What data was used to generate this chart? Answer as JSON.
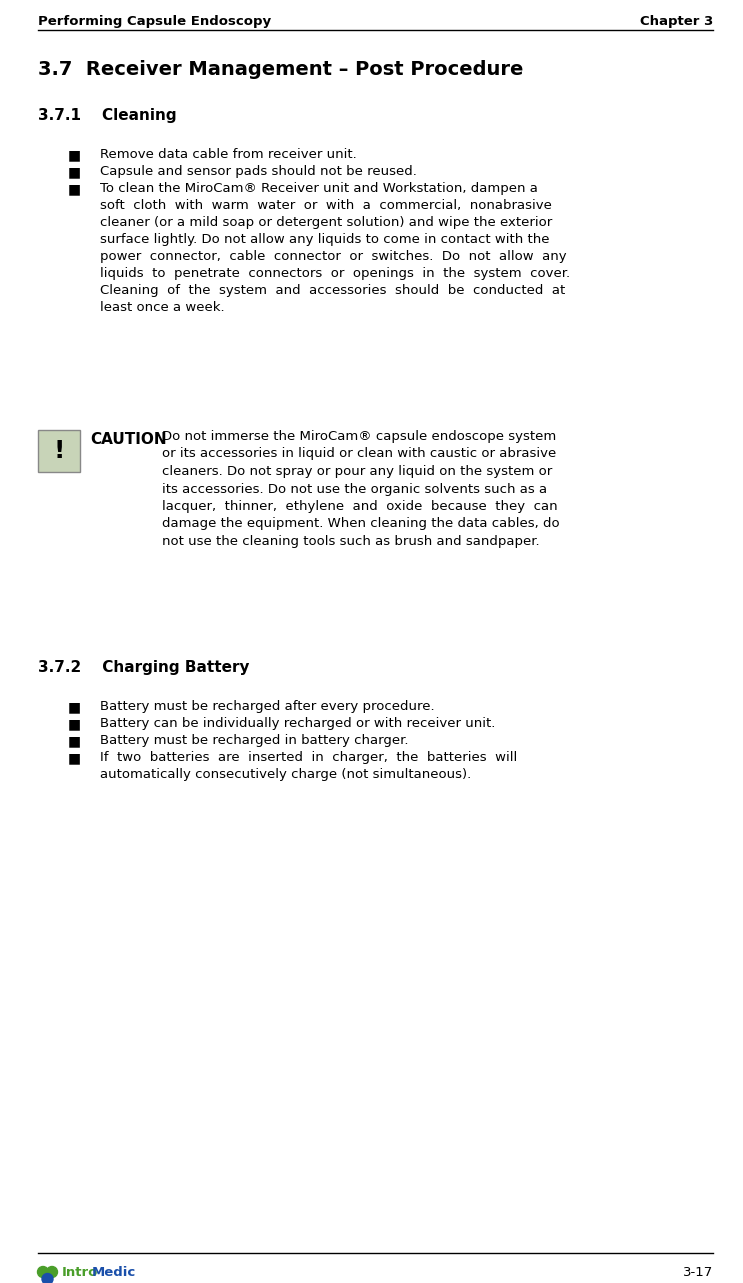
{
  "header_left": "Performing Capsule Endoscopy",
  "header_right": "Chapter 3",
  "footer_right": "3-17",
  "section_title": "3.7  Receiver Management – Post Procedure",
  "subsection1": "3.7.1    Cleaning",
  "bullet1": "Remove data cable from receiver unit.",
  "bullet2": "Capsule and sensor pads should not be reused.",
  "bullet3_lines": [
    "To clean the MiroCam® Receiver unit and Workstation, dampen a",
    "soft  cloth  with  warm  water  or  with  a  commercial,  nonabrasive",
    "cleaner (or a mild soap or detergent solution) and wipe the exterior",
    "surface lightly. Do not allow any liquids to come in contact with the",
    "power  connector,  cable  connector  or  switches.  Do  not  allow  any",
    "liquids  to  penetrate  connectors  or  openings  in  the  system  cover.",
    "Cleaning  of  the  system  and  accessories  should  be  conducted  at",
    "least once a week."
  ],
  "caution_label": "CAUTION",
  "caution_text_lines": [
    "Do not immerse the MiroCam® capsule endoscope system",
    "or its accessories in liquid or clean with caustic or abrasive",
    "cleaners. Do not spray or pour any liquid on the system or",
    "its accessories. Do not use the organic solvents such as a",
    "lacquer,  thinner,  ethylene  and  oxide  because  they  can",
    "damage the equipment. When cleaning the data cables, do",
    "not use the cleaning tools such as brush and sandpaper."
  ],
  "subsection2": "3.7.2    Charging Battery",
  "bullet4": "Battery must be recharged after every procedure.",
  "bullet5": "Battery can be individually recharged or with receiver unit.",
  "bullet6": "Battery must be recharged in battery charger.",
  "bullet7_lines": [
    "If  two  batteries  are  inserted  in  charger,  the  batteries  will",
    "automatically consecutively charge (not simultaneous)."
  ],
  "bg_color": "#ffffff",
  "text_color": "#000000",
  "header_font_size": 9.5,
  "section_font_size": 14,
  "subsection_font_size": 11,
  "body_font_size": 9.5,
  "caution_label_font_size": 11,
  "caution_font_size": 9.5,
  "footer_font_size": 9.5,
  "logo_green": "#4a9e2a",
  "logo_blue": "#1a4faa",
  "caution_box_color": "#c8d4b8",
  "caution_box_border": "#888888"
}
